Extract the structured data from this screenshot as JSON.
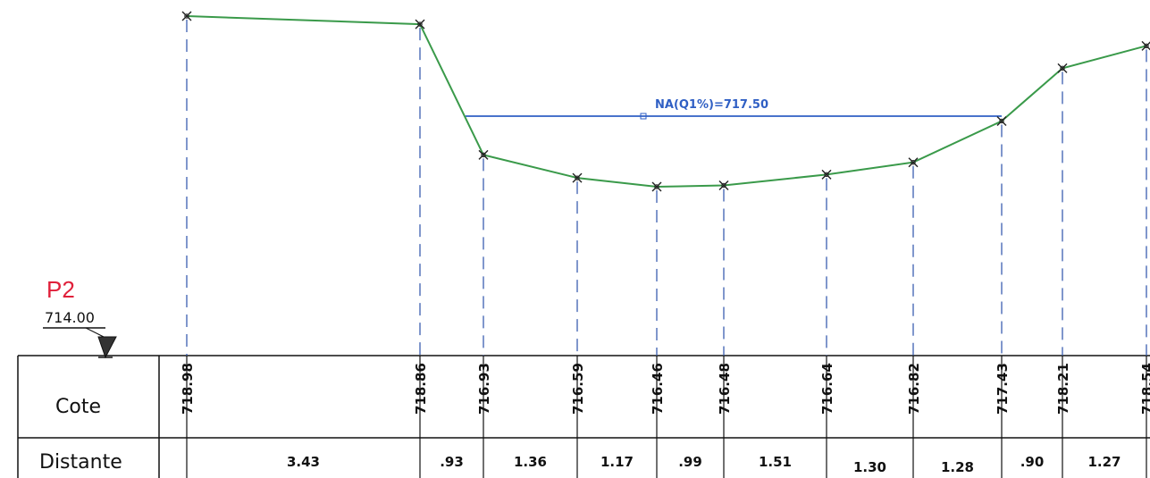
{
  "datum": {
    "profile_label": "P2",
    "reference_level": "714.00",
    "profile_label_color": "#e0203a"
  },
  "water_level": {
    "label": "NA(Q1%)=717.50",
    "color": "#2f5fc4"
  },
  "ground_line_color": "#3a9a4a",
  "table": {
    "row_cote_label": "Cote",
    "row_distance_label": "Distante"
  },
  "points": [
    {
      "cote": "718.98"
    },
    {
      "cote": "718.86"
    },
    {
      "cote": "716.93"
    },
    {
      "cote": "716.59"
    },
    {
      "cote": "716.46"
    },
    {
      "cote": "716.48"
    },
    {
      "cote": "716.64"
    },
    {
      "cote": "716.82"
    },
    {
      "cote": "717.43"
    },
    {
      "cote": "718.21"
    },
    {
      "cote": "718.54"
    }
  ],
  "distances": [
    "3.43",
    ".93",
    "1.36",
    "1.17",
    ".99",
    "1.51",
    "1.30",
    "1.28",
    ".90",
    "1.27"
  ]
}
